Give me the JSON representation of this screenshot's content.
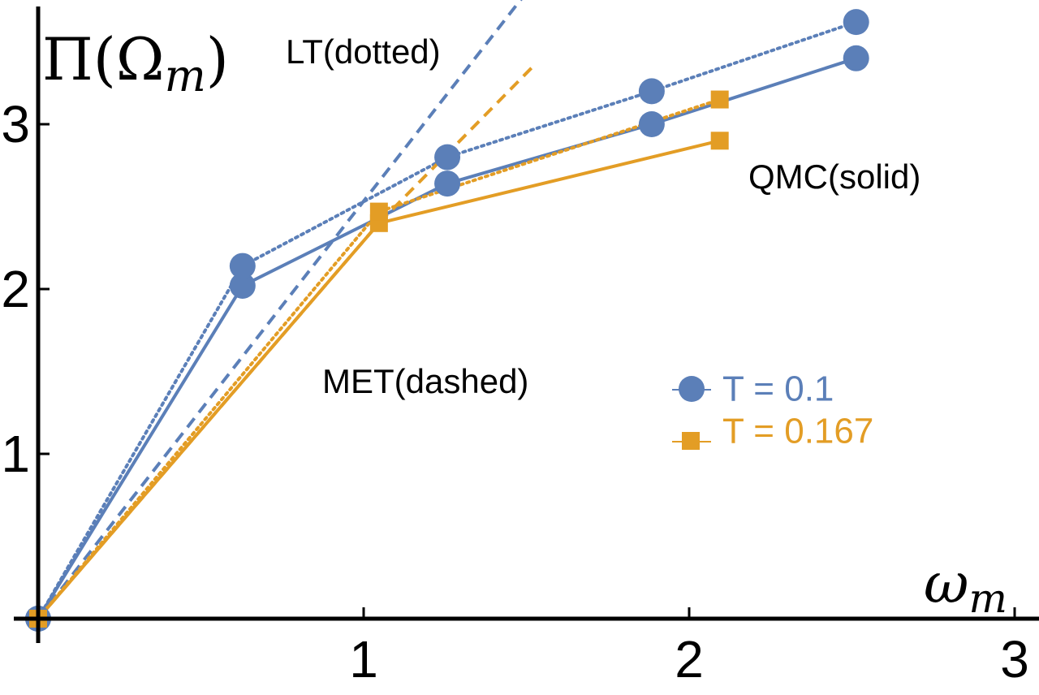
{
  "chart_data": {
    "type": "line",
    "title": "",
    "xlabel": "ω_m",
    "ylabel": "Π(Ω_m)",
    "xlabel_parts": {
      "main": "ω",
      "sub": "m"
    },
    "ylabel_parts": {
      "pre": "Π(Ω",
      "sub": "m",
      "post": ")"
    },
    "xlim": [
      0,
      3.05
    ],
    "ylim": [
      0,
      3.8
    ],
    "xticks": [
      1,
      2,
      3
    ],
    "xtick_labels": [
      "1",
      "2",
      "3"
    ],
    "yticks": [
      1,
      2,
      3
    ],
    "ytick_labels": [
      "1",
      "2",
      "3"
    ],
    "grid": false,
    "annotations": [
      {
        "id": "lt",
        "text": "LT(dotted)",
        "x": 1.0,
        "y": 3.6
      },
      {
        "id": "qmc",
        "text": "QMC(solid)",
        "x": 2.85,
        "y": 2.85
      },
      {
        "id": "met",
        "text": "MET(dashed)",
        "x": 1.2,
        "y": 1.55
      }
    ],
    "legend": {
      "position": "center-right",
      "entries": [
        {
          "label": "T = 0.1",
          "color": "#5B7FB8",
          "marker": "circle"
        },
        {
          "label": "T = 0.167",
          "color": "#E39D25",
          "marker": "square"
        }
      ]
    },
    "series": [
      {
        "name": "QMC T=0.1",
        "color": "#5B7FB8",
        "style": "solid",
        "marker": "circle",
        "x": [
          0,
          0.628,
          1.257,
          1.885,
          2.513
        ],
        "y": [
          0,
          2.02,
          2.64,
          3.0,
          3.4
        ]
      },
      {
        "name": "LT T=0.1",
        "color": "#5B7FB8",
        "style": "dotted",
        "marker": "circle",
        "x": [
          0,
          0.628,
          1.257,
          1.885,
          2.513
        ],
        "y": [
          0,
          2.14,
          2.8,
          3.2,
          3.62
        ]
      },
      {
        "name": "MET T=0.1",
        "color": "#5B7FB8",
        "style": "dashed",
        "marker": "none",
        "x": [
          0,
          1.5
        ],
        "y": [
          0,
          3.8
        ]
      },
      {
        "name": "QMC T=0.167",
        "color": "#E39D25",
        "style": "solid",
        "marker": "square",
        "x": [
          0,
          1.047,
          2.094
        ],
        "y": [
          0,
          2.4,
          2.9
        ]
      },
      {
        "name": "LT T=0.167",
        "color": "#E39D25",
        "style": "dotted",
        "marker": "square",
        "x": [
          0,
          1.047,
          2.094
        ],
        "y": [
          0,
          2.47,
          3.15
        ]
      },
      {
        "name": "MET T=0.167",
        "color": "#E39D25",
        "style": "dashed",
        "marker": "none",
        "x": [
          0,
          1.047,
          1.52
        ],
        "y": [
          0,
          2.4,
          3.35
        ]
      }
    ]
  }
}
